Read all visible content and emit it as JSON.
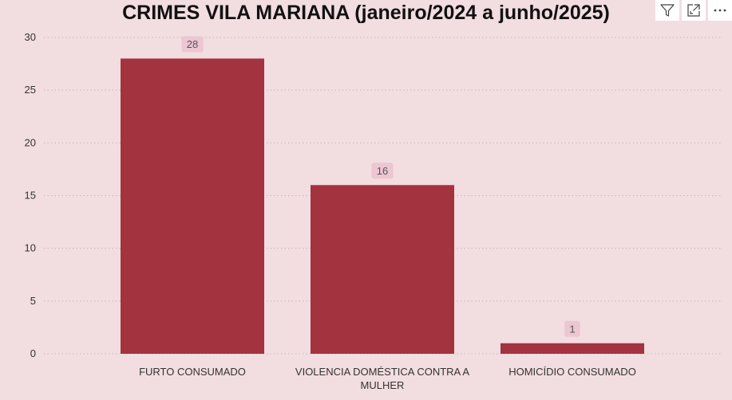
{
  "chart_data": {
    "type": "bar",
    "title": "CRIMES VILA MARIANA (janeiro/2024 a junho/2025)",
    "categories": [
      "FURTO CONSUMADO",
      "VIOLENCIA DOMÉSTICA CONTRA A MULHER",
      "HOMICÍDIO CONSUMADO"
    ],
    "category_lines": [
      [
        "FURTO CONSUMADO"
      ],
      [
        "VIOLENCIA DOMÉSTICA CONTRA A",
        "MULHER"
      ],
      [
        "HOMICÍDIO CONSUMADO"
      ]
    ],
    "values": [
      28,
      16,
      1
    ],
    "data_labels": [
      "28",
      "16",
      "1"
    ],
    "xlabel": "",
    "ylabel": "",
    "ylim": [
      0,
      30
    ],
    "yticks": [
      0,
      5,
      10,
      15,
      20,
      25,
      30
    ],
    "grid": true,
    "legend": "none"
  },
  "colors": {
    "background": "#f2dde0",
    "bar": "#a3333f",
    "label_bg": "#ecc6d2",
    "label_text": "#555555",
    "grid": "#c9b5b9",
    "axis_text": "#333333"
  },
  "toolbar": {
    "filter_icon": "filter-icon",
    "focus_icon": "focus-mode-icon",
    "more_icon": "more-options-icon"
  }
}
